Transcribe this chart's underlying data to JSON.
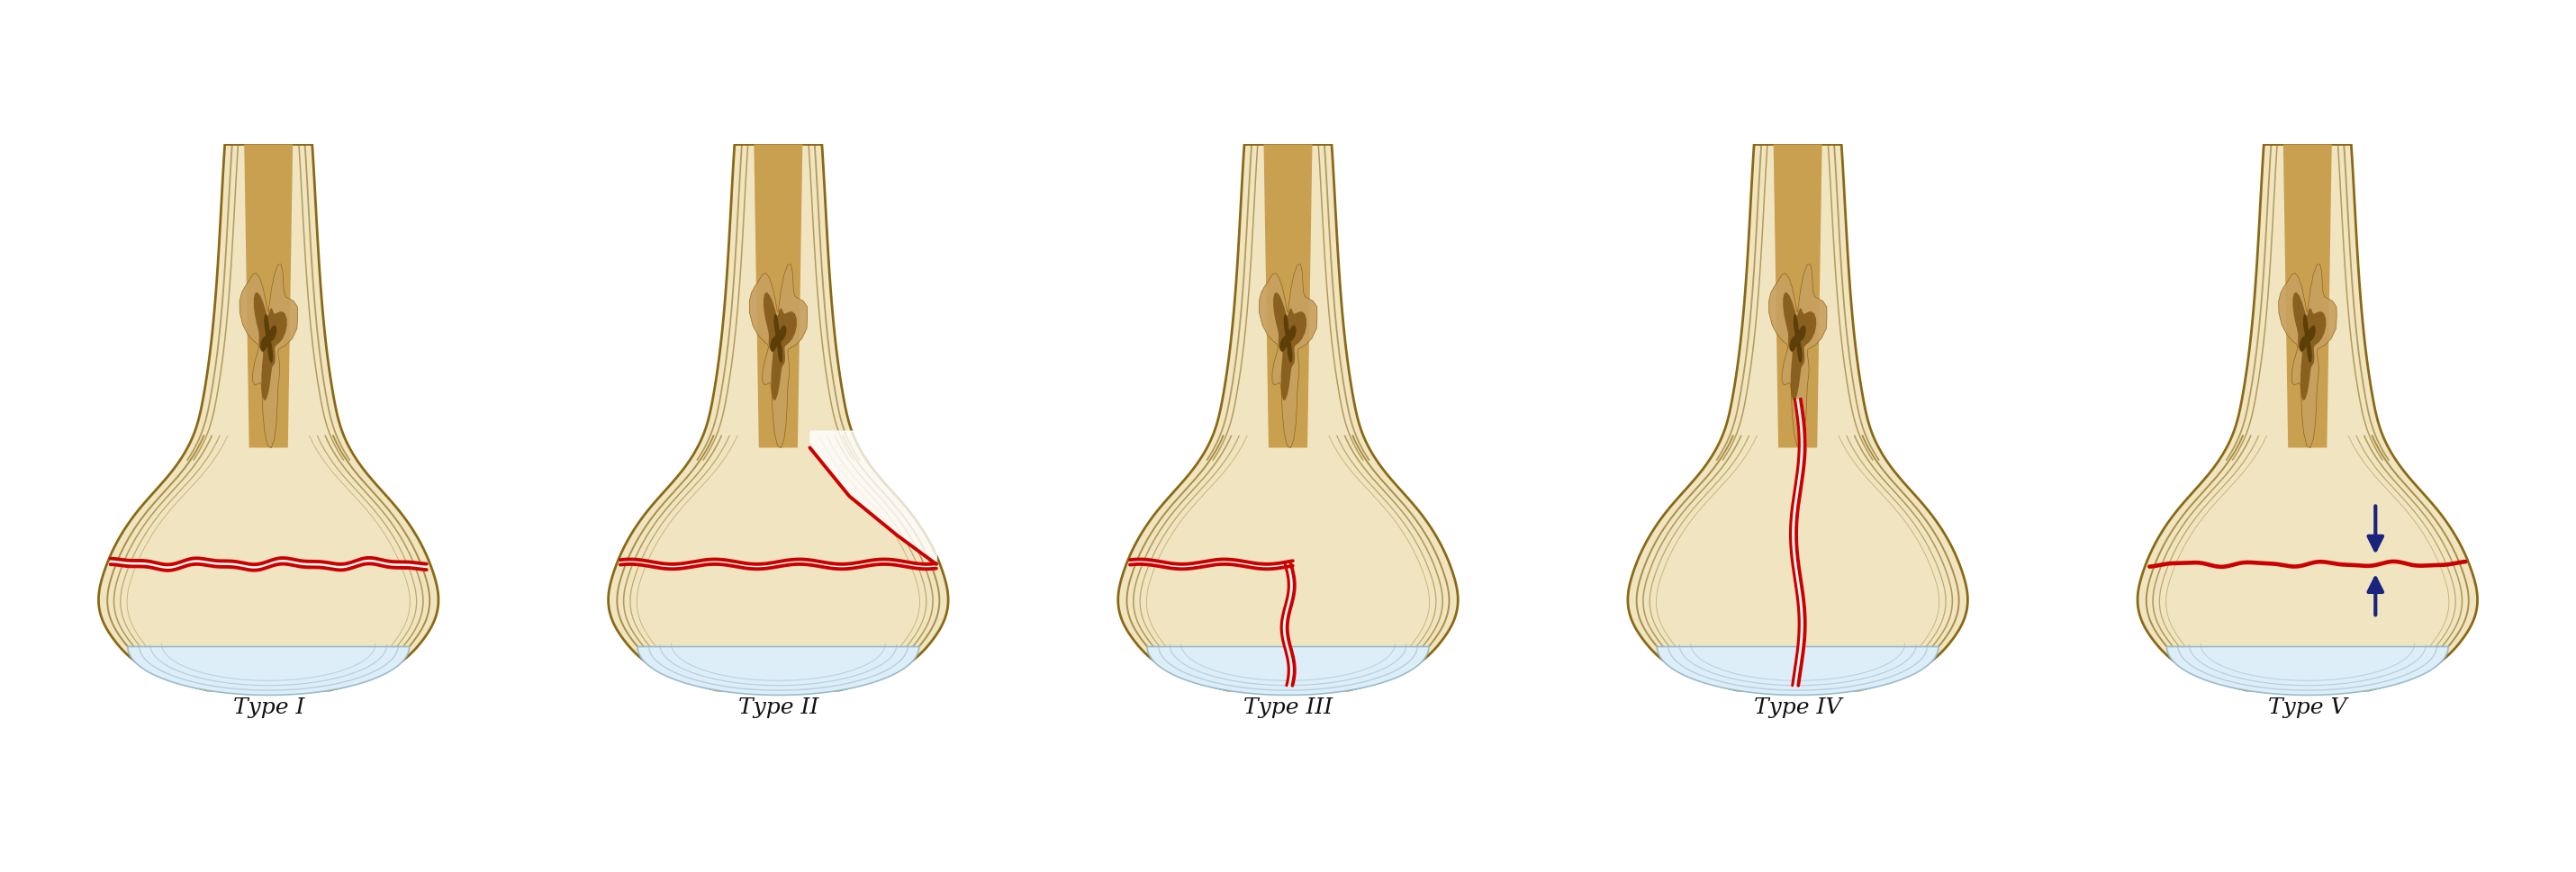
{
  "types": [
    "Type I",
    "Type II",
    "Type III",
    "Type IV",
    "Type V"
  ],
  "background_color": "#ffffff",
  "bone_fill": "#f0e5c0",
  "bone_fill2": "#ede0b5",
  "cortex_stroke": "#8B6914",
  "cortex_stroke2": "#9b7820",
  "medullary_outer": "#c8a050",
  "medullary_inner": "#7a5010",
  "medullary_mid": "#9a7030",
  "cartilage_fill": "#ddeef8",
  "cartilage_stroke": "#99bbcc",
  "fracture_color": "#cc0000",
  "arrow_color": "#1a237e",
  "text_color": "#111111",
  "label_fontsize": 18,
  "fig_width": 28.61,
  "fig_height": 9.7
}
